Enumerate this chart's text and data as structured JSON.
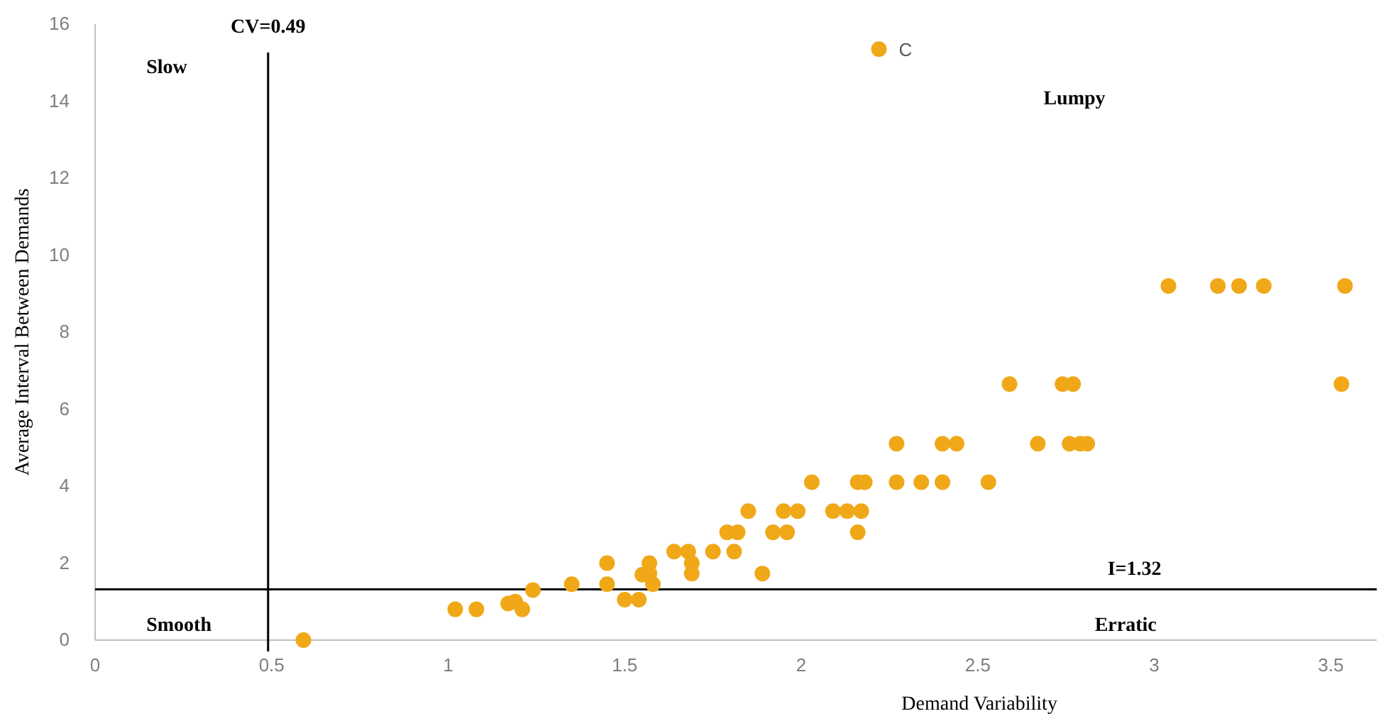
{
  "chart_data": {
    "type": "scatter",
    "xlabel": "Demand Variability",
    "ylabel": "Average  Interval Between Demands",
    "xlim": [
      0,
      3.63
    ],
    "ylim": [
      0,
      16
    ],
    "xticks": [
      0,
      0.5,
      1,
      1.5,
      2,
      2.5,
      3,
      3.5
    ],
    "yticks": [
      0,
      2,
      4,
      6,
      8,
      10,
      12,
      14,
      16
    ],
    "grid": false,
    "marker": "circle",
    "series": [
      {
        "color": "#f0a818",
        "x": [
          0.59,
          1.02,
          1.08,
          1.17,
          1.19,
          1.21,
          1.24,
          1.35,
          1.45,
          1.45,
          1.5,
          1.54,
          1.55,
          1.57,
          1.57,
          1.58,
          1.64,
          1.68,
          1.69,
          1.69,
          1.75,
          1.81,
          1.79,
          1.82,
          1.85,
          1.89,
          1.92,
          1.96,
          1.95,
          1.99,
          2.03,
          2.09,
          2.13,
          2.17,
          2.16,
          2.16,
          2.18,
          2.27,
          2.34,
          2.4,
          2.53,
          2.27,
          2.4,
          2.44,
          2.67,
          2.76,
          2.79,
          2.81,
          2.59,
          2.74,
          2.77,
          3.53,
          2.22,
          3.04,
          3.18,
          3.24,
          3.31,
          3.54
        ],
        "values": [
          0,
          0.8,
          0.8,
          0.95,
          1.0,
          0.8,
          1.3,
          1.45,
          2.0,
          1.45,
          1.05,
          1.05,
          1.7,
          2.0,
          1.73,
          1.45,
          2.3,
          2.3,
          2.0,
          1.73,
          2.3,
          2.3,
          2.8,
          2.8,
          3.35,
          1.73,
          2.8,
          2.8,
          3.35,
          3.35,
          4.1,
          3.35,
          3.35,
          3.35,
          2.8,
          4.1,
          4.1,
          4.1,
          4.1,
          4.1,
          4.1,
          5.1,
          5.1,
          5.1,
          5.1,
          5.1,
          5.1,
          5.1,
          6.65,
          6.65,
          6.65,
          6.65,
          15.35,
          9.2,
          9.2,
          9.2,
          9.2,
          9.2
        ]
      }
    ],
    "ref_lines": [
      {
        "axis": "x",
        "value": 0.49,
        "label": "CV=0.49",
        "color": "#000000"
      },
      {
        "axis": "y",
        "value": 1.32,
        "label": "I=1.32",
        "color": "#000000"
      }
    ],
    "annotations": [
      "Slow",
      "Lumpy",
      "Smooth",
      "Erratic",
      {
        "text": "C",
        "x": 2.22,
        "y": 15.35
      }
    ]
  }
}
